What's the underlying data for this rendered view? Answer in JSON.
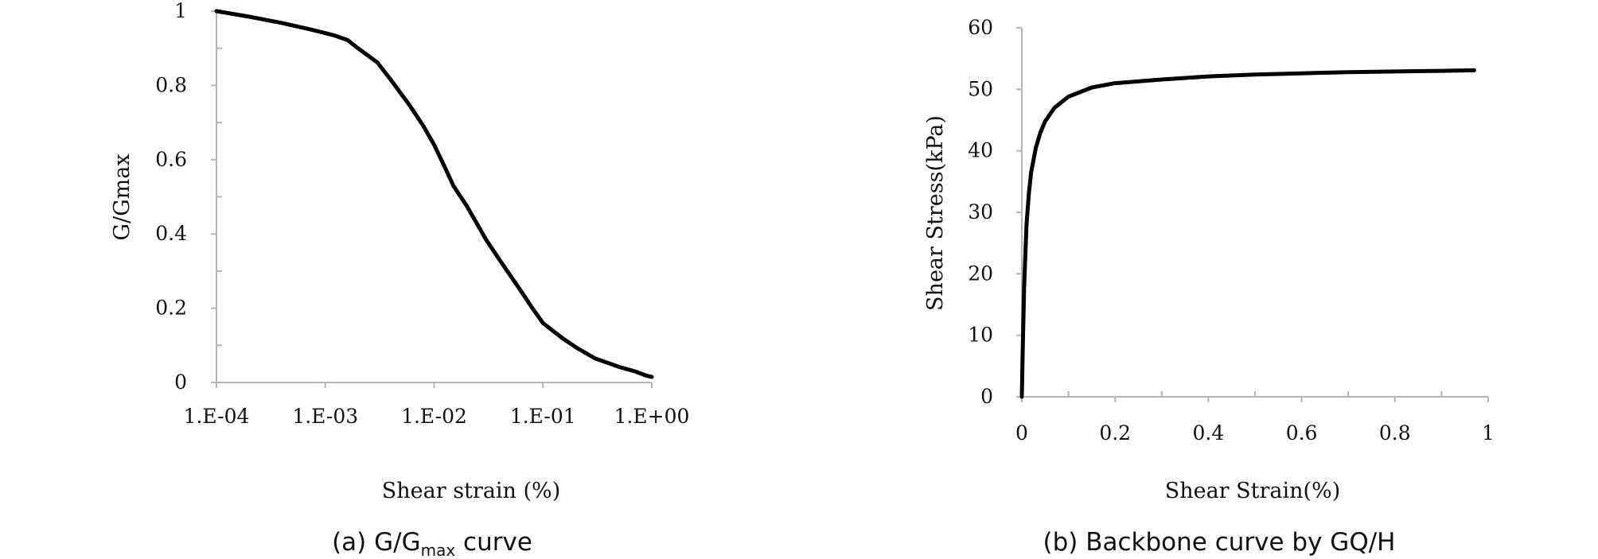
{
  "chart_data": [
    {
      "type": "line",
      "title": "",
      "xlabel": "Shear strain (%)",
      "ylabel": "G/Gmax",
      "xscale": "log",
      "xlim": [
        0.0001,
        1
      ],
      "ylim": [
        0,
        1
      ],
      "grid": false,
      "x_ticks": [
        0.0001,
        0.001,
        0.01,
        0.1,
        1
      ],
      "x_tick_labels": [
        "1.E-04",
        "1.E-03",
        "1.E-02",
        "1.E-01",
        "1.E+00"
      ],
      "y_ticks": [
        0,
        0.2,
        0.4,
        0.6,
        0.8,
        1
      ],
      "y_tick_labels": [
        "0",
        "0.2",
        "0.4",
        "0.6",
        "0.8",
        "1"
      ],
      "caption": {
        "prefix": "(a) G/G",
        "sub": "max",
        "suffix": " curve"
      },
      "series": [
        {
          "x": [
            0.0001,
            0.0002,
            0.0004,
            0.0008,
            0.0012,
            0.0016,
            0.002,
            0.003,
            0.004,
            0.006,
            0.008,
            0.01,
            0.013,
            0.015,
            0.02,
            0.03,
            0.04,
            0.06,
            0.08,
            0.1,
            0.15,
            0.2,
            0.3,
            0.5,
            0.7,
            0.9,
            1.0
          ],
          "y": [
            1.0,
            0.985,
            0.968,
            0.948,
            0.935,
            0.922,
            0.9,
            0.862,
            0.815,
            0.745,
            0.69,
            0.64,
            0.57,
            0.53,
            0.475,
            0.385,
            0.33,
            0.255,
            0.2,
            0.16,
            0.12,
            0.095,
            0.065,
            0.042,
            0.03,
            0.018,
            0.015
          ]
        }
      ]
    },
    {
      "type": "line",
      "title": "",
      "xlabel": "Shear Strain(%)",
      "ylabel": "Shear Stress(kPa)",
      "xscale": "linear",
      "xlim": [
        0,
        1
      ],
      "ylim": [
        0,
        60
      ],
      "grid": false,
      "x_ticks": [
        0,
        0.2,
        0.4,
        0.6,
        0.8,
        1
      ],
      "x_tick_labels": [
        "0",
        "0.2",
        "0.4",
        "0.6",
        "0.8",
        "1"
      ],
      "y_ticks": [
        0,
        10,
        20,
        30,
        40,
        50,
        60
      ],
      "y_tick_labels": [
        "0",
        "10",
        "20",
        "30",
        "40",
        "50",
        "60"
      ],
      "caption": {
        "prefix": "(b) Backbone curve by GQ/H",
        "sub": "",
        "suffix": ""
      },
      "series": [
        {
          "x": [
            0,
            0.002,
            0.005,
            0.01,
            0.015,
            0.02,
            0.03,
            0.04,
            0.05,
            0.07,
            0.1,
            0.15,
            0.2,
            0.3,
            0.4,
            0.5,
            0.6,
            0.7,
            0.8,
            0.9,
            0.97
          ],
          "y": [
            0,
            8,
            18,
            28,
            33,
            36.5,
            40.5,
            43,
            44.8,
            47,
            48.8,
            50.3,
            51,
            51.6,
            52.1,
            52.4,
            52.6,
            52.8,
            52.9,
            53.0,
            53.1
          ]
        }
      ]
    }
  ]
}
